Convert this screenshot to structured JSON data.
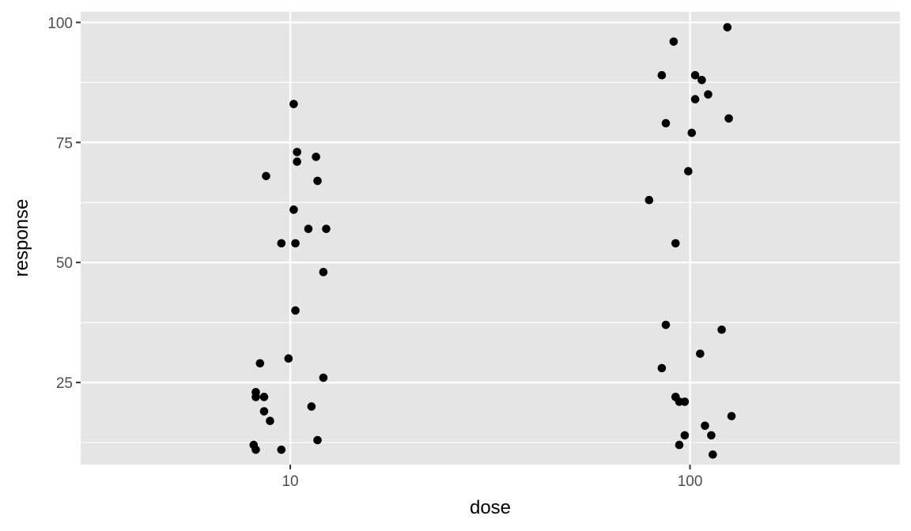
{
  "chart_data": {
    "type": "scatter",
    "title": "",
    "xlabel": "dose",
    "ylabel": "response",
    "x_scale": "log10",
    "xlim": [
      2.99,
      335
    ],
    "ylim": [
      7.9,
      102.2
    ],
    "x_ticks": [
      {
        "value": 10,
        "label": "10"
      },
      {
        "value": 100,
        "label": "100"
      }
    ],
    "y_ticks": [
      {
        "value": 25,
        "label": "25"
      },
      {
        "value": 50,
        "label": "50"
      },
      {
        "value": 75,
        "label": "75"
      },
      {
        "value": 100,
        "label": "100"
      }
    ],
    "grid": true,
    "legend": "none",
    "point_color": "#000000",
    "panel_color": "#e5e5e5",
    "series": [
      {
        "points": [
          [
            10.2,
            83
          ],
          [
            10.4,
            73
          ],
          [
            11.6,
            72
          ],
          [
            10.4,
            71
          ],
          [
            8.7,
            68
          ],
          [
            11.7,
            67
          ],
          [
            10.2,
            61
          ],
          [
            11.1,
            57
          ],
          [
            12.3,
            57
          ],
          [
            9.5,
            54
          ],
          [
            10.3,
            54
          ],
          [
            12.1,
            48
          ],
          [
            10.3,
            40
          ],
          [
            9.9,
            30
          ],
          [
            8.4,
            29
          ],
          [
            12.1,
            26
          ],
          [
            8.2,
            23
          ],
          [
            8.2,
            22
          ],
          [
            8.6,
            22
          ],
          [
            11.3,
            20
          ],
          [
            8.6,
            19
          ],
          [
            8.9,
            17
          ],
          [
            11.7,
            13
          ],
          [
            8.1,
            12
          ],
          [
            8.2,
            11
          ],
          [
            9.5,
            11
          ],
          [
            124,
            99
          ],
          [
            91,
            96
          ],
          [
            85,
            89
          ],
          [
            103,
            89
          ],
          [
            107,
            88
          ],
          [
            111,
            85
          ],
          [
            103,
            84
          ],
          [
            125,
            80
          ],
          [
            87,
            79
          ],
          [
            101,
            77
          ],
          [
            99,
            69
          ],
          [
            79,
            63
          ],
          [
            92,
            54
          ],
          [
            87,
            37
          ],
          [
            120,
            36
          ],
          [
            106,
            31
          ],
          [
            85,
            28
          ],
          [
            92,
            22
          ],
          [
            94,
            21
          ],
          [
            97,
            21
          ],
          [
            127,
            18
          ],
          [
            109,
            16
          ],
          [
            97,
            14
          ],
          [
            113,
            14
          ],
          [
            94,
            12
          ],
          [
            114,
            10
          ]
        ]
      }
    ]
  }
}
